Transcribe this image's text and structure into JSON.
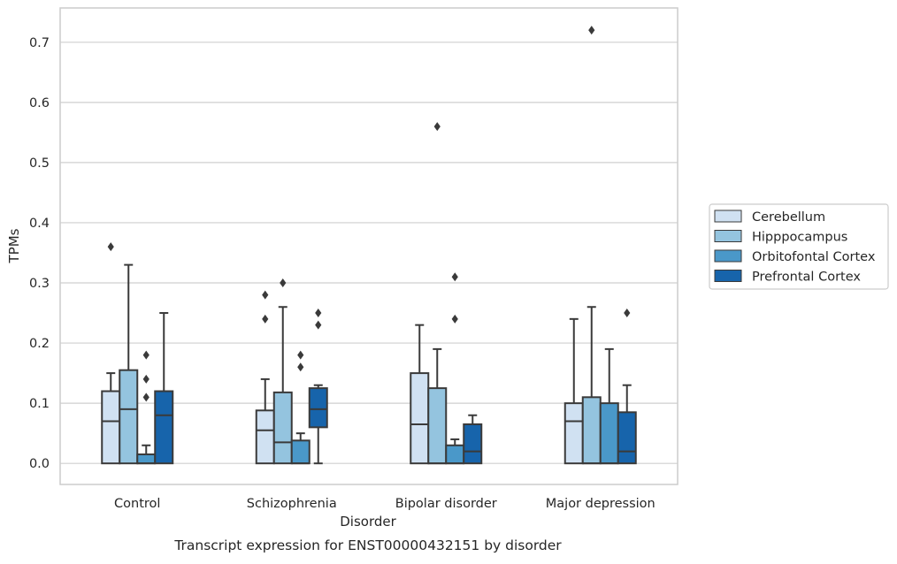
{
  "chart_data": {
    "type": "box",
    "title": "",
    "caption": "Transcript expression for ENST00000432151 by disorder",
    "xlabel": "Disorder",
    "ylabel": "TPMs",
    "categories": [
      "Control",
      "Schizophrenia",
      "Bipolar disorder",
      "Major depression"
    ],
    "yticks": [
      "0.0",
      "0.1",
      "0.2",
      "0.3",
      "0.4",
      "0.5",
      "0.6",
      "0.7"
    ],
    "ytick_values": [
      0.0,
      0.1,
      0.2,
      0.3,
      0.4,
      0.5,
      0.6,
      0.7
    ],
    "ylim": [
      -0.035,
      0.757
    ],
    "grid": "horizontal",
    "legend_position": "right",
    "series": [
      {
        "name": "Cerebellum",
        "color": "#d0e1f2",
        "boxes": [
          {
            "whisker_low": 0.0,
            "q1": 0.0,
            "median": 0.07,
            "q3": 0.12,
            "whisker_high": 0.15,
            "outliers": [
              0.36
            ]
          },
          {
            "whisker_low": 0.0,
            "q1": 0.0,
            "median": 0.055,
            "q3": 0.088,
            "whisker_high": 0.14,
            "outliers": [
              0.24,
              0.28
            ]
          },
          {
            "whisker_low": 0.0,
            "q1": 0.0,
            "median": 0.065,
            "q3": 0.15,
            "whisker_high": 0.23,
            "outliers": []
          },
          {
            "whisker_low": 0.0,
            "q1": 0.0,
            "median": 0.07,
            "q3": 0.1,
            "whisker_high": 0.24,
            "outliers": []
          }
        ]
      },
      {
        "name": "Hipppocampus",
        "color": "#94c4df",
        "boxes": [
          {
            "whisker_low": 0.0,
            "q1": 0.0,
            "median": 0.09,
            "q3": 0.155,
            "whisker_high": 0.33,
            "outliers": []
          },
          {
            "whisker_low": 0.0,
            "q1": 0.0,
            "median": 0.035,
            "q3": 0.118,
            "whisker_high": 0.26,
            "outliers": [
              0.3
            ]
          },
          {
            "whisker_low": 0.0,
            "q1": 0.0,
            "median": 0.0,
            "q3": 0.125,
            "whisker_high": 0.19,
            "outliers": [
              0.56
            ]
          },
          {
            "whisker_low": 0.0,
            "q1": 0.0,
            "median": 0.0,
            "q3": 0.11,
            "whisker_high": 0.26,
            "outliers": [
              0.72
            ]
          }
        ]
      },
      {
        "name": "Orbitofontal Cortex",
        "color": "#4a98c9",
        "boxes": [
          {
            "whisker_low": 0.0,
            "q1": 0.0,
            "median": 0.0,
            "q3": 0.015,
            "whisker_high": 0.03,
            "outliers": [
              0.11,
              0.14,
              0.18
            ]
          },
          {
            "whisker_low": 0.0,
            "q1": 0.0,
            "median": 0.0,
            "q3": 0.038,
            "whisker_high": 0.05,
            "outliers": [
              0.16,
              0.18
            ]
          },
          {
            "whisker_low": 0.0,
            "q1": 0.0,
            "median": 0.0,
            "q3": 0.03,
            "whisker_high": 0.04,
            "outliers": [
              0.24,
              0.31
            ]
          },
          {
            "whisker_low": 0.0,
            "q1": 0.0,
            "median": 0.0,
            "q3": 0.1,
            "whisker_high": 0.19,
            "outliers": []
          }
        ]
      },
      {
        "name": "Prefrontal Cortex",
        "color": "#1764ab",
        "boxes": [
          {
            "whisker_low": 0.0,
            "q1": 0.0,
            "median": 0.08,
            "q3": 0.12,
            "whisker_high": 0.25,
            "outliers": []
          },
          {
            "whisker_low": 0.0,
            "q1": 0.06,
            "median": 0.09,
            "q3": 0.125,
            "whisker_high": 0.13,
            "outliers": [
              0.23,
              0.25
            ]
          },
          {
            "whisker_low": 0.0,
            "q1": 0.0,
            "median": 0.02,
            "q3": 0.065,
            "whisker_high": 0.08,
            "outliers": []
          },
          {
            "whisker_low": 0.0,
            "q1": 0.0,
            "median": 0.02,
            "q3": 0.085,
            "whisker_high": 0.13,
            "outliers": [
              0.25
            ]
          }
        ]
      }
    ]
  }
}
